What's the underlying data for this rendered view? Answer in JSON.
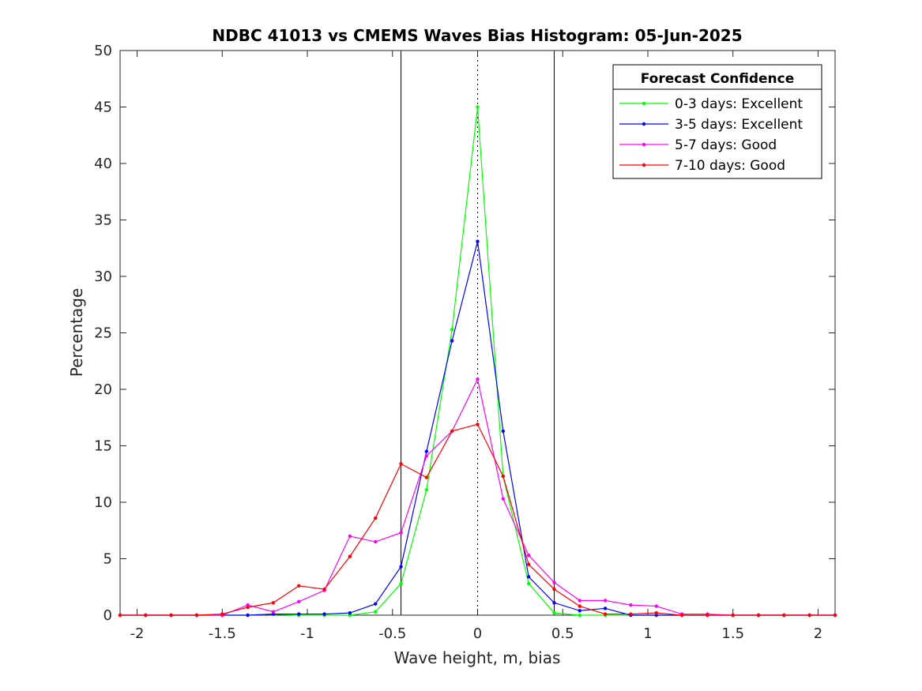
{
  "chart_data": {
    "type": "line",
    "title": "NDBC 41013 vs CMEMS Waves Bias Histogram: 05-Jun-2025",
    "xlabel": "Wave height, m, bias",
    "ylabel": "Percentage",
    "xlim": [
      -2.1,
      2.1
    ],
    "ylim": [
      0,
      50
    ],
    "xticks": [
      -2,
      -1.5,
      -1,
      -0.5,
      0,
      0.5,
      1,
      1.5,
      2
    ],
    "xtick_labels": [
      "-2",
      "-1.5",
      "-1",
      "-0.5",
      "0",
      "0.5",
      "1",
      "1.5",
      "2"
    ],
    "yticks": [
      0,
      5,
      10,
      15,
      20,
      25,
      30,
      35,
      40,
      45,
      50
    ],
    "ytick_labels": [
      "0",
      "5",
      "10",
      "15",
      "20",
      "25",
      "30",
      "35",
      "40",
      "45",
      "50"
    ],
    "grid": false,
    "legend": {
      "title": "Forecast Confidence",
      "location": "top-right"
    },
    "reference_lines": {
      "solid": [
        -0.45,
        0.45
      ],
      "dotted": [
        0
      ]
    },
    "x": [
      -2.1,
      -1.95,
      -1.8,
      -1.65,
      -1.5,
      -1.35,
      -1.2,
      -1.05,
      -0.9,
      -0.75,
      -0.6,
      -0.45,
      -0.3,
      -0.15,
      0,
      0.15,
      0.3,
      0.45,
      0.6,
      0.75,
      0.9,
      1.05,
      1.2,
      1.35,
      1.5,
      1.65,
      1.8,
      1.95,
      2.1
    ],
    "series": [
      {
        "name": "0-3 days: Excellent",
        "color": "#00ff00",
        "values": [
          0,
          0,
          0,
          0,
          0,
          0,
          0.1,
          0,
          0,
          0,
          0.3,
          2.8,
          11.1,
          25.3,
          45.0,
          12.3,
          2.8,
          0.2,
          0,
          0,
          0,
          0,
          0,
          0,
          0,
          0,
          0,
          0,
          0
        ]
      },
      {
        "name": "3-5 days: Excellent",
        "color": "#0000ff",
        "values": [
          0,
          0,
          0,
          0,
          0,
          0,
          0.1,
          0.1,
          0.1,
          0.2,
          1.0,
          4.3,
          14.5,
          24.3,
          33.1,
          16.3,
          3.4,
          1.1,
          0.4,
          0.6,
          0,
          0,
          0,
          0,
          0,
          0,
          0,
          0,
          0
        ]
      },
      {
        "name": "5-7 days: Good",
        "color": "#ff00ff",
        "values": [
          0,
          0,
          0,
          0,
          0,
          0.9,
          0.3,
          1.2,
          2.2,
          7.0,
          6.5,
          7.3,
          14.1,
          16.3,
          20.9,
          10.3,
          5.3,
          2.9,
          1.3,
          1.3,
          0.9,
          0.8,
          0.1,
          0.1,
          0,
          0,
          0,
          0,
          0
        ]
      },
      {
        "name": "7-10 days: Good",
        "color": "#ff0000",
        "values": [
          0,
          0,
          0,
          0,
          0.1,
          0.7,
          1.1,
          2.6,
          2.3,
          5.2,
          8.6,
          13.4,
          12.2,
          16.3,
          16.9,
          12.3,
          4.5,
          2.3,
          0.8,
          0.1,
          0.1,
          0.2,
          0,
          0,
          0,
          0,
          0,
          0,
          0
        ]
      }
    ]
  }
}
